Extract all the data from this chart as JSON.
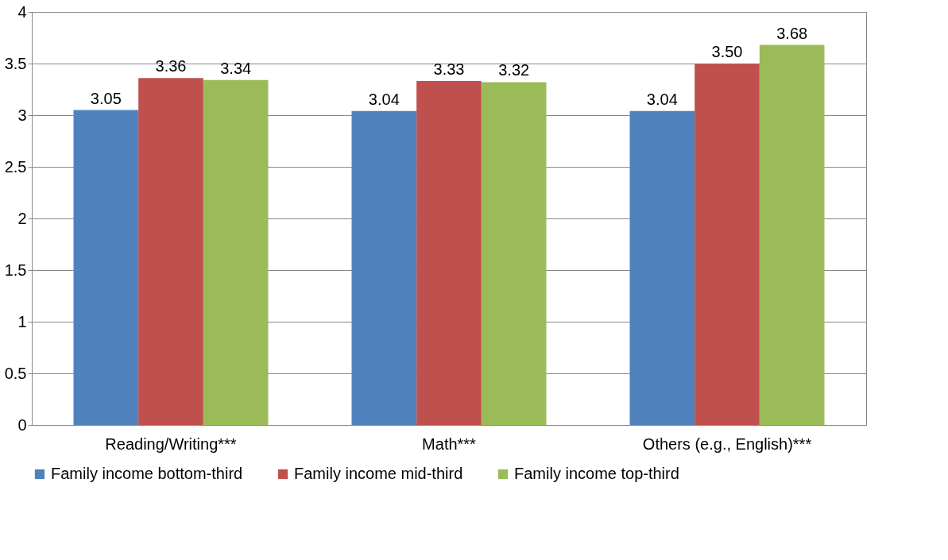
{
  "chart_data": {
    "type": "bar",
    "categories": [
      "Reading/Writing***",
      "Math***",
      "Others (e.g., English)***"
    ],
    "series": [
      {
        "name": "Family income bottom-third",
        "color": "#4f81bd",
        "values": [
          3.05,
          3.04,
          3.04
        ],
        "value_labels": [
          "3.05",
          "3.04",
          "3.04"
        ]
      },
      {
        "name": "Family income mid-third",
        "color": "#c0504d",
        "values": [
          3.36,
          3.33,
          3.5
        ],
        "value_labels": [
          "3.36",
          "3.33",
          "3.50"
        ]
      },
      {
        "name": "Family income top-third",
        "color": "#9bbb59",
        "values": [
          3.34,
          3.32,
          3.68
        ],
        "value_labels": [
          "3.34",
          "3.32",
          "3.68"
        ]
      }
    ],
    "ylim": [
      0,
      4
    ],
    "yticks": [
      0,
      0.5,
      1,
      1.5,
      2,
      2.5,
      3,
      3.5,
      4
    ],
    "grid": "y",
    "legend": "bottom"
  }
}
